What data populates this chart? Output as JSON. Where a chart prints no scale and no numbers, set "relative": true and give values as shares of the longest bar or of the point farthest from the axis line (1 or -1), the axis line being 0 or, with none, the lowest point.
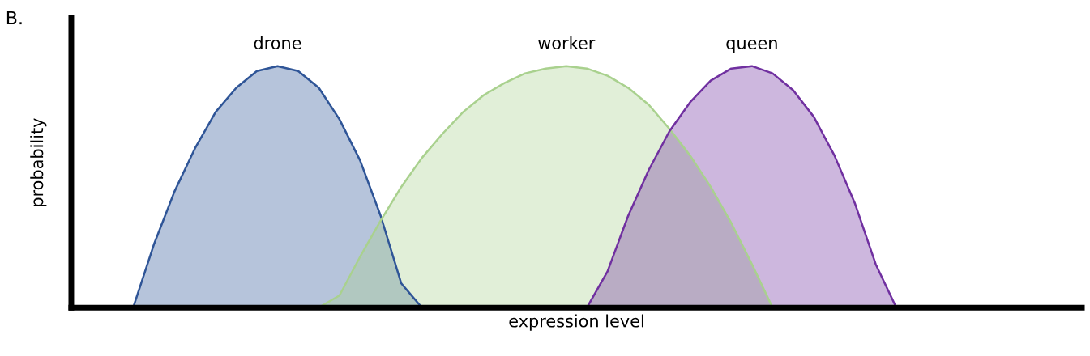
{
  "chart_data": {
    "type": "area",
    "relative": true,
    "title": "B.",
    "xlabel": "expression level",
    "ylabel": "probability",
    "legend": false,
    "grid": false,
    "tick_labels": false,
    "categories": [
      null,
      null,
      null,
      null,
      null,
      null,
      null,
      null,
      null,
      null,
      null,
      null,
      null,
      null,
      null,
      null,
      null,
      null,
      null,
      null,
      null,
      null,
      null,
      null,
      null,
      null,
      null,
      null,
      null,
      null,
      null,
      null,
      null,
      null,
      null,
      null,
      null,
      null,
      null,
      null,
      null,
      null,
      null,
      null,
      null,
      null,
      null,
      null,
      null,
      null
    ],
    "series": [
      {
        "name": "drone",
        "color": "#2f5597",
        "values": [
          null,
          null,
          null,
          0,
          0.26,
          0.48,
          0.66,
          0.81,
          0.91,
          0.98,
          1.0,
          0.98,
          0.91,
          0.78,
          0.61,
          0.38,
          0.1,
          0,
          null,
          null,
          null,
          null,
          null,
          null,
          null,
          null,
          null,
          null,
          null,
          null,
          null,
          null,
          null,
          null,
          null,
          null,
          null,
          null,
          null,
          null,
          null,
          null,
          null,
          null,
          null,
          null,
          null,
          null,
          null,
          null
        ]
      },
      {
        "name": "worker",
        "color": "#a9d18e",
        "values": [
          null,
          null,
          null,
          null,
          null,
          null,
          null,
          null,
          null,
          null,
          null,
          null,
          0,
          0.05,
          0.21,
          0.36,
          0.5,
          0.62,
          0.72,
          0.81,
          0.88,
          0.93,
          0.97,
          0.99,
          1.0,
          0.99,
          0.96,
          0.91,
          0.84,
          0.74,
          0.63,
          0.5,
          0.35,
          0.18,
          0,
          null,
          null,
          null,
          null,
          null,
          null,
          null,
          null,
          null,
          null,
          null,
          null,
          null,
          null,
          null
        ]
      },
      {
        "name": "queen",
        "color": "#7030a0",
        "values": [
          null,
          null,
          null,
          null,
          null,
          null,
          null,
          null,
          null,
          null,
          null,
          null,
          null,
          null,
          null,
          null,
          null,
          null,
          null,
          null,
          null,
          null,
          null,
          null,
          null,
          0,
          0.15,
          0.38,
          0.57,
          0.73,
          0.85,
          0.94,
          0.99,
          1.0,
          0.97,
          0.9,
          0.79,
          0.63,
          0.43,
          0.18,
          0,
          null,
          null,
          null,
          null,
          null,
          null,
          null,
          null,
          null
        ]
      }
    ]
  }
}
